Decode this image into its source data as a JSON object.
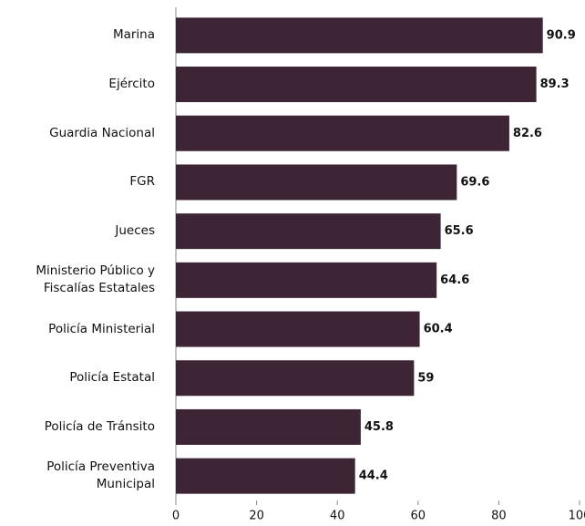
{
  "chart_data": {
    "type": "barh",
    "categories": [
      "Marina",
      "Ejército",
      "Guardia Nacional",
      "FGR",
      "Jueces",
      "Ministerio Público y Fiscalías Estatales",
      "Policía Ministerial",
      "Policía Estatal",
      "Policía de Tránsito",
      "Policía Preventiva Municipal"
    ],
    "values": [
      90.9,
      89.3,
      82.6,
      69.6,
      65.6,
      64.6,
      60.4,
      59,
      45.8,
      44.4
    ],
    "color": "#3d2536",
    "xlim": [
      0,
      100
    ],
    "xticks": [
      0,
      20,
      40,
      60,
      80,
      100
    ],
    "grid": false
  }
}
